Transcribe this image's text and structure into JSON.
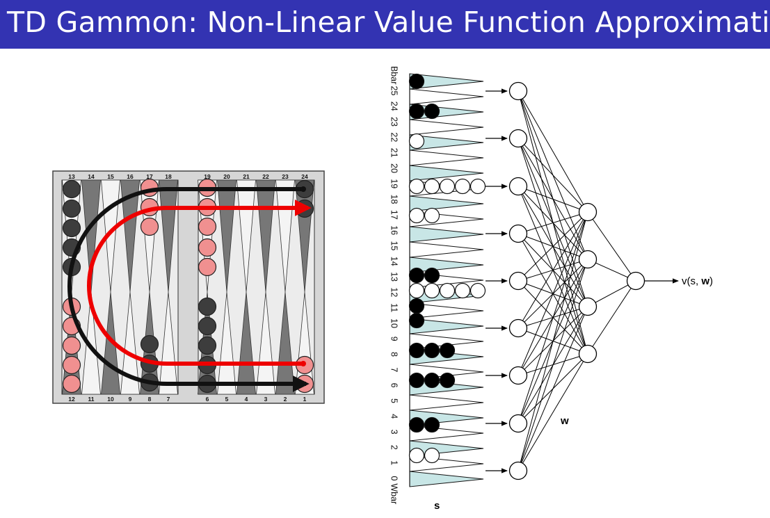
{
  "title": "TD Gammon: Non-Linear Value Function Approximation",
  "board": {
    "top_labels": [
      "13",
      "14",
      "15",
      "16",
      "17",
      "18",
      "19",
      "20",
      "21",
      "22",
      "23",
      "24"
    ],
    "bottom_labels": [
      "12",
      "11",
      "10",
      "9",
      "8",
      "7",
      "6",
      "5",
      "4",
      "3",
      "2",
      "1"
    ]
  },
  "network": {
    "point_labels": [
      "Bbar",
      "25",
      "24",
      "23",
      "22",
      "21",
      "20",
      "19",
      "18",
      "17",
      "16",
      "15",
      "14",
      "13",
      "12",
      "11",
      "10",
      "9",
      "8",
      "7",
      "6",
      "5",
      "4",
      "3",
      "2",
      "1",
      "0",
      "Wbar"
    ],
    "input_label": "s",
    "weights_label": "w",
    "output_label_prefix": "v(s, ",
    "output_label_bold": "w",
    "output_label_suffix": ")"
  },
  "colors": {
    "title_bar": "#3333b2",
    "checker_dark": "#3d3d3d",
    "checker_light": "#f09090",
    "arrow_red": "#ee0000",
    "triangle_fill": "#c8e6e6"
  }
}
